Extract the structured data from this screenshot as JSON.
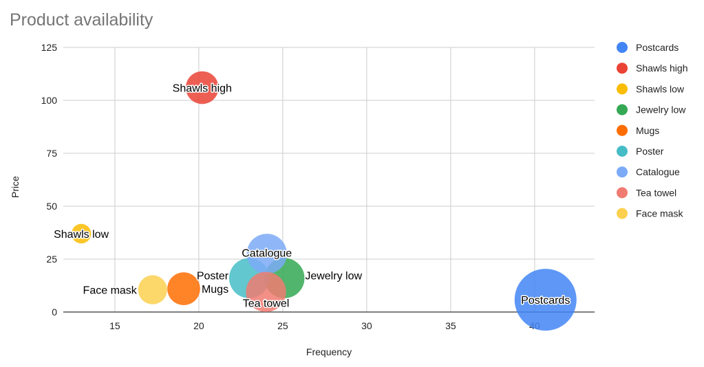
{
  "chart_data": {
    "type": "bubble",
    "title": "Product availability",
    "xlabel": "Frequency",
    "ylabel": "Price",
    "xlim": [
      11.93,
      43.57
    ],
    "ylim": [
      0,
      125
    ],
    "xticks": [
      15,
      20,
      25,
      30,
      35,
      40
    ],
    "yticks": [
      0,
      25,
      50,
      75,
      100,
      125
    ],
    "grid": true,
    "legend_position": "right",
    "series": [
      {
        "name": "Postcards",
        "x": 40.65,
        "y": 5.8,
        "size": 100,
        "color": "#4285F4"
      },
      {
        "name": "Shawls high",
        "x": 20.2,
        "y": 106,
        "size": 28,
        "color": "#EA4335"
      },
      {
        "name": "Shawls low",
        "x": 13.0,
        "y": 37,
        "size": 10,
        "color": "#FBBC04"
      },
      {
        "name": "Jewelry low",
        "x": 25.1,
        "y": 16,
        "size": 42,
        "color": "#34A853"
      },
      {
        "name": "Mugs",
        "x": 19.1,
        "y": 11,
        "size": 28,
        "color": "#FF6D01"
      },
      {
        "name": "Poster",
        "x": 23.0,
        "y": 16,
        "size": 42,
        "color": "#46BDC6"
      },
      {
        "name": "Catalogue",
        "x": 24.05,
        "y": 27.5,
        "size": 42,
        "color": "#7BAAF7"
      },
      {
        "name": "Tea towel",
        "x": 24.0,
        "y": 9.5,
        "size": 42,
        "color": "#F07B72"
      },
      {
        "name": "Face mask",
        "x": 17.25,
        "y": 10.5,
        "size": 22,
        "color": "#FCD04F"
      }
    ]
  }
}
